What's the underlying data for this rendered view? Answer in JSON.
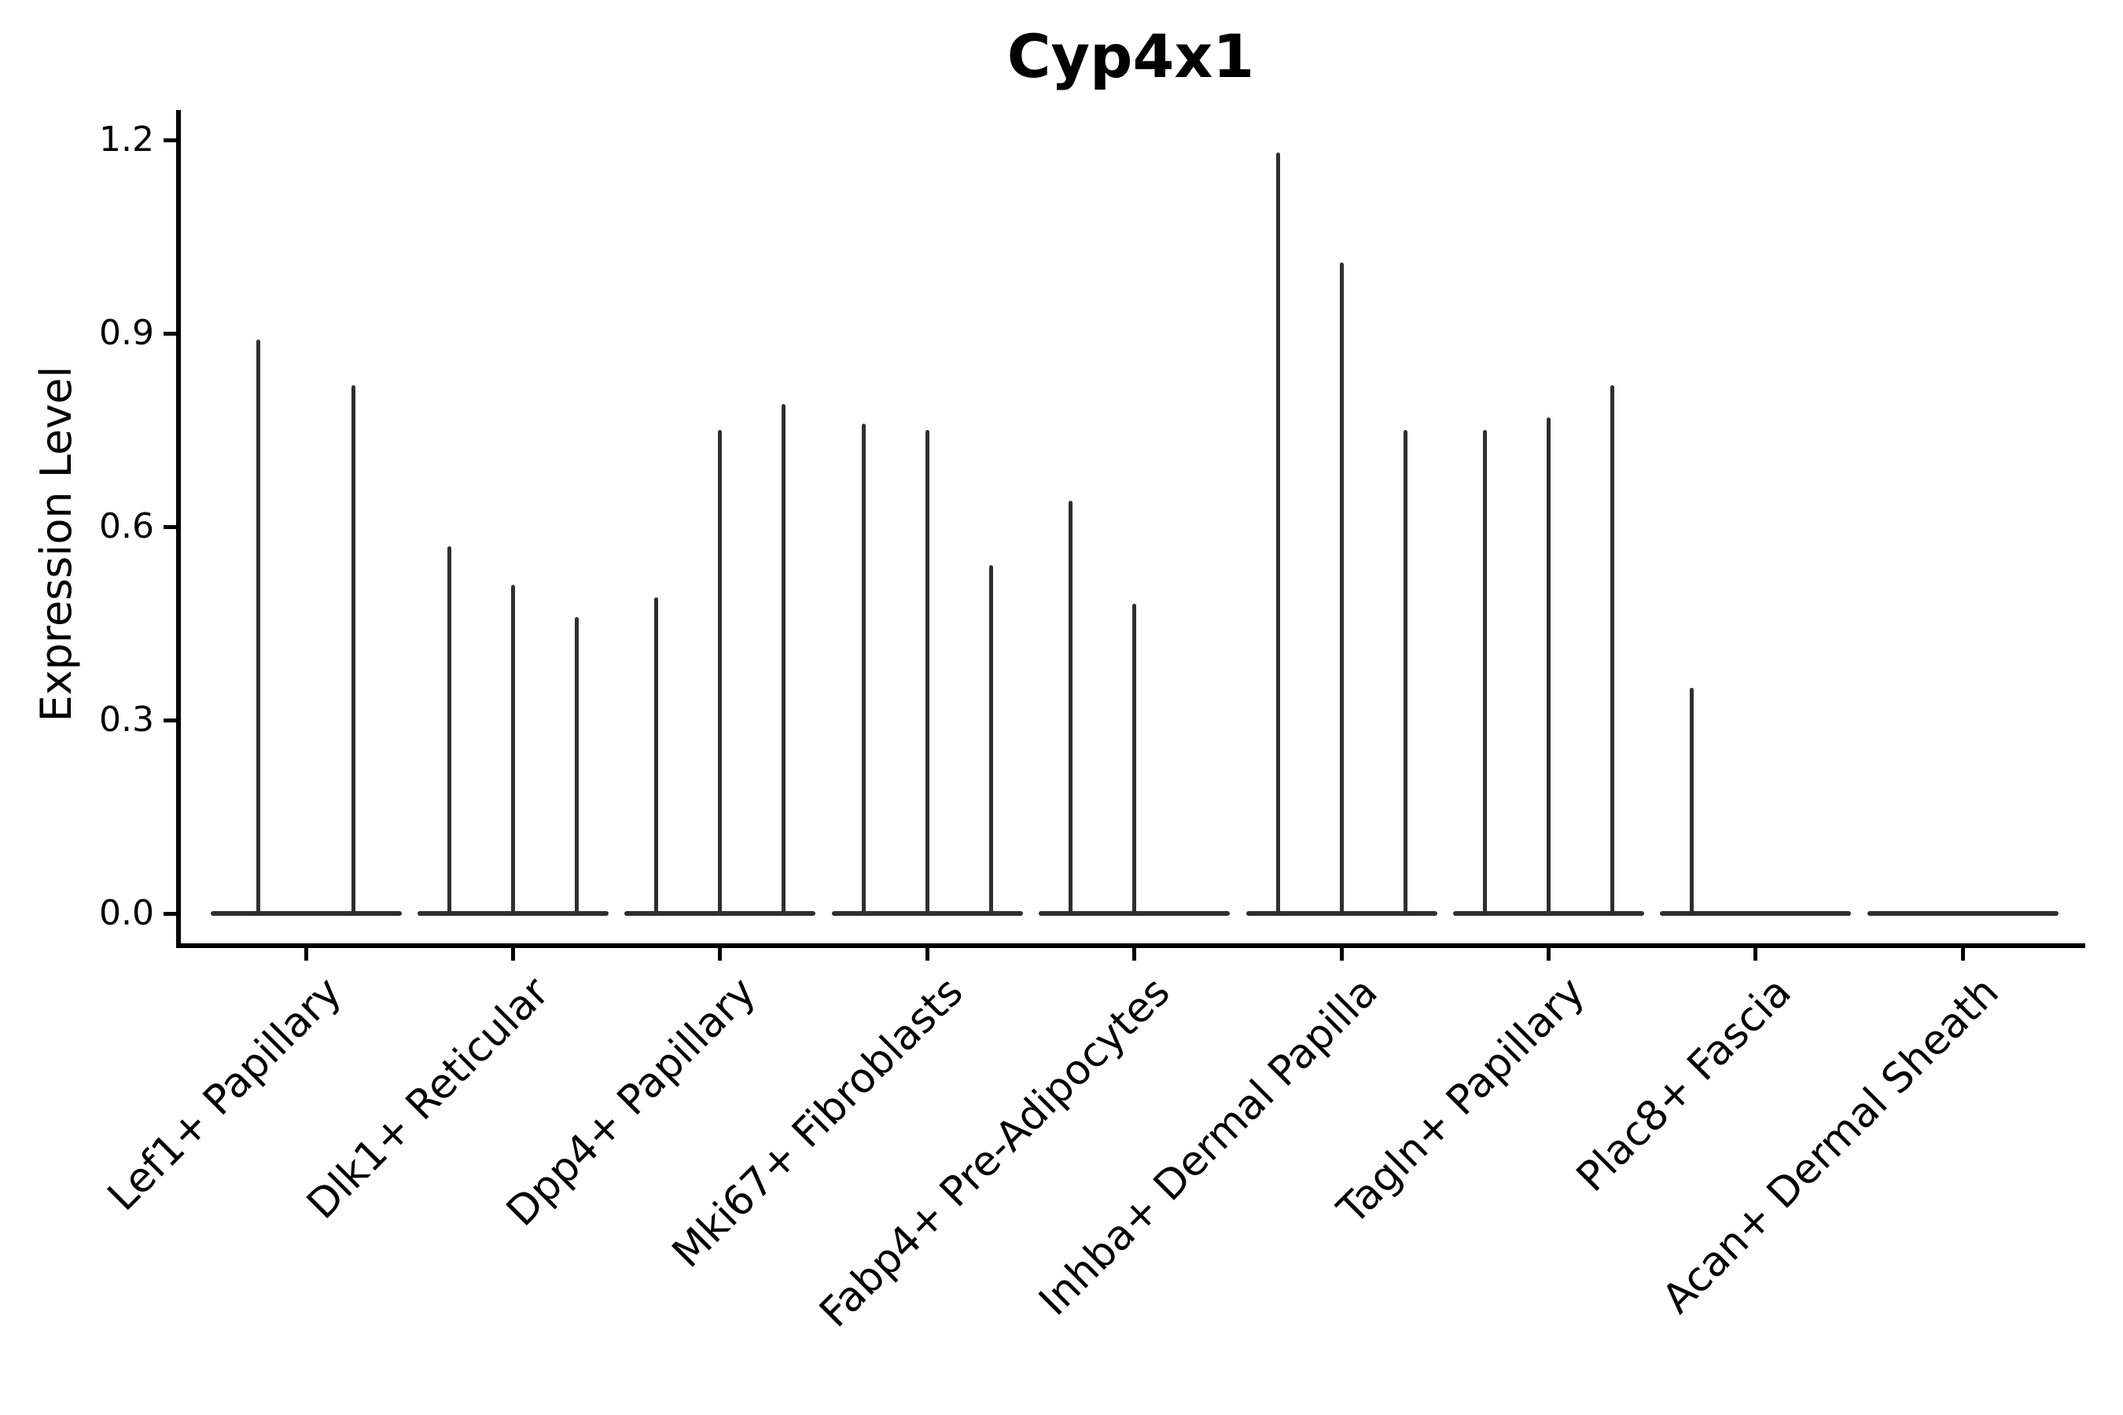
{
  "title": "Cyp4x1",
  "style": {
    "background": "#ffffff",
    "axis_color": "#000000",
    "text_color": "#000000",
    "violin_color": "#2f2f2f"
  },
  "chart_data": {
    "type": "violin",
    "title": "Cyp4x1",
    "xlabel": "",
    "ylabel": "Expression Level",
    "ylim": [
      -0.05,
      1.24
    ],
    "y_ticks": [
      0,
      0.3,
      0.6,
      0.9,
      1.2
    ],
    "y_tick_labels": [
      "0.0",
      "0.3",
      "0.6",
      "0.9",
      "1.2"
    ],
    "grid": false,
    "legend": "none",
    "x_tick_rotation": 45,
    "categories": [
      "Lef1+ Papillary",
      "Dlk1+ Reticular",
      "Dpp4+ Papillary",
      "Mki67+ Fibroblasts",
      "Fabp4+ Pre-Adipocytes",
      "Inhba+ Dermal Papilla",
      "Tagln+ Papillary",
      "Plac8+ Fascia",
      "Acan+ Dermal Sheath"
    ],
    "violins_per_category": [
      2,
      3,
      3,
      3,
      3,
      3,
      3,
      3,
      3
    ],
    "violin_max_values": [
      [
        0.89,
        0.82
      ],
      [
        0.57,
        0.51,
        0.46
      ],
      [
        0.49,
        0.75,
        0.79
      ],
      [
        0.76,
        0.75,
        0.54
      ],
      [
        0.64,
        0.48,
        null
      ],
      [
        1.18,
        1.01,
        0.75
      ],
      [
        0.75,
        0.77,
        0.82
      ],
      [
        0.35,
        null,
        null
      ],
      [
        null,
        null,
        null
      ]
    ]
  }
}
